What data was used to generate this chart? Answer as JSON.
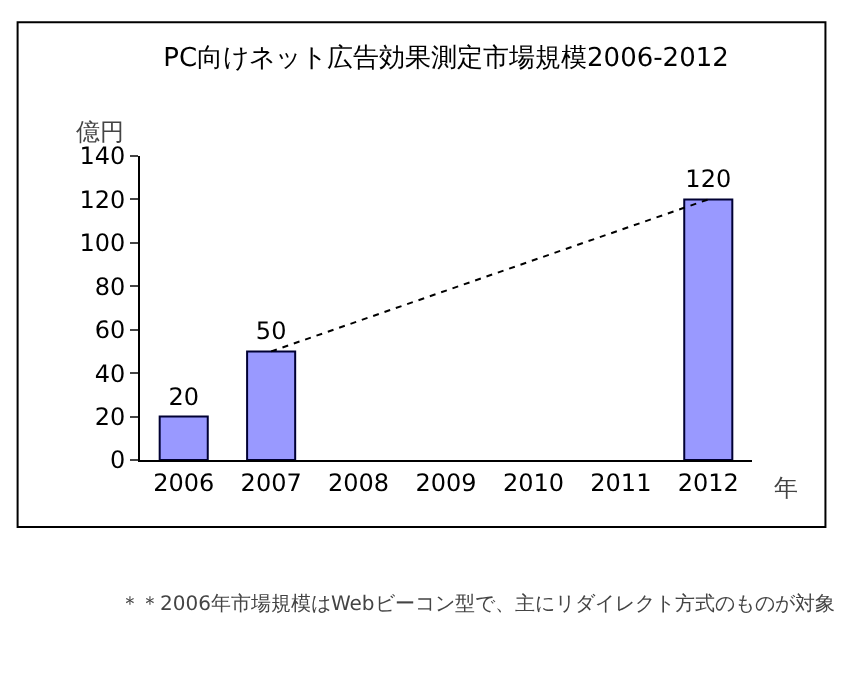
{
  "chart_data": {
    "type": "bar",
    "title": "PC向けネット広告効果測定市場規模2006-2012",
    "ylabel": "億円",
    "xlabel": "年",
    "categories": [
      "2006",
      "2007",
      "2008",
      "2009",
      "2010",
      "2011",
      "2012"
    ],
    "series": [
      {
        "color": "#9999ff",
        "values": [
          20,
          50,
          null,
          null,
          null,
          null,
          120
        ],
        "value_labels": [
          "20",
          "50",
          null,
          null,
          null,
          null,
          "120"
        ]
      },
      {
        "type": "line",
        "color": "#000000",
        "values": [
          null,
          50,
          null,
          null,
          null,
          null,
          120
        ],
        "line_style": "dotted",
        "marker": "none"
      }
    ],
    "ylim": [
      0,
      140
    ],
    "yticks": [
      0,
      20,
      40,
      60,
      80,
      100,
      120,
      140
    ],
    "grid": false,
    "annotations": [
      "＊＊2006年市場規模はWebビーコン型で、主にリダイレクト方式のものが対象"
    ]
  }
}
